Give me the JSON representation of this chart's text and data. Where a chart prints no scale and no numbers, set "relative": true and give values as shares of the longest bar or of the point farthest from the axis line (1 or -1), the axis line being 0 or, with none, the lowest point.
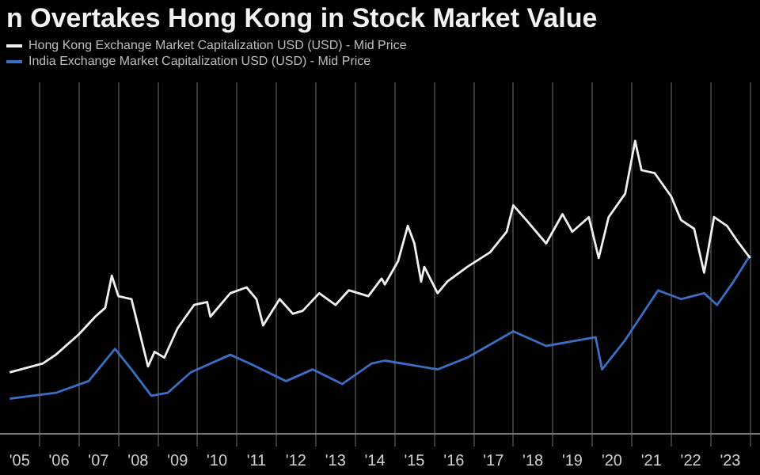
{
  "chart_data": {
    "type": "line",
    "title": "n Overtakes Hong Kong in Stock Market Value",
    "relative": true,
    "legend": "top left",
    "grid": "x",
    "marker": "none",
    "line_style": "solid",
    "xlim": [
      "2005-01",
      "2024-04"
    ],
    "xticks": [
      {
        "value": "2005-07-01",
        "label": "'05"
      },
      {
        "value": "2006-01-01",
        "label": null
      },
      {
        "value": "2006-07-01",
        "label": "'06"
      },
      {
        "value": "2007-01-01",
        "label": null
      },
      {
        "value": "2007-07-01",
        "label": "'07"
      },
      {
        "value": "2008-01-01",
        "label": null
      },
      {
        "value": "2008-07-01",
        "label": "'08"
      },
      {
        "value": "2009-01-01",
        "label": null
      },
      {
        "value": "2009-07-01",
        "label": "'09"
      },
      {
        "value": "2010-01-01",
        "label": null
      },
      {
        "value": "2010-07-01",
        "label": "'10"
      },
      {
        "value": "2011-01-01",
        "label": null
      },
      {
        "value": "2011-07-01",
        "label": "'11"
      },
      {
        "value": "2012-01-01",
        "label": null
      },
      {
        "value": "2012-07-01",
        "label": "'12"
      },
      {
        "value": "2013-01-01",
        "label": null
      },
      {
        "value": "2013-07-01",
        "label": "'13"
      },
      {
        "value": "2014-01-01",
        "label": null
      },
      {
        "value": "2014-07-01",
        "label": "'14"
      },
      {
        "value": "2015-01-01",
        "label": null
      },
      {
        "value": "2015-07-01",
        "label": "'15"
      },
      {
        "value": "2016-01-01",
        "label": null
      },
      {
        "value": "2016-07-01",
        "label": "'16"
      },
      {
        "value": "2017-01-01",
        "label": null
      },
      {
        "value": "2017-07-01",
        "label": "'17"
      },
      {
        "value": "2018-01-01",
        "label": null
      },
      {
        "value": "2018-07-01",
        "label": "'18"
      },
      {
        "value": "2019-01-01",
        "label": null
      },
      {
        "value": "2019-07-01",
        "label": "'19"
      },
      {
        "value": "2020-01-01",
        "label": null
      },
      {
        "value": "2020-07-01",
        "label": "'20"
      },
      {
        "value": "2021-01-01",
        "label": null
      },
      {
        "value": "2021-07-01",
        "label": "'21"
      },
      {
        "value": "2022-01-01",
        "label": null
      },
      {
        "value": "2022-07-01",
        "label": "'22"
      },
      {
        "value": "2023-01-01",
        "label": null
      },
      {
        "value": "2023-07-01",
        "label": "'23"
      },
      {
        "value": "2024-01-01",
        "label": null
      }
    ],
    "series": [
      {
        "name": "Hong Kong Exchange Market Capitalization USD (USD) - Mid Price",
        "color": "#f0f0f0",
        "x": [
          "2005-04",
          "2006-02",
          "2006-06",
          "2007-01",
          "2007-06",
          "2007-09",
          "2007-11",
          "2008-01",
          "2008-05",
          "2008-10",
          "2008-12",
          "2009-03",
          "2009-07",
          "2009-12",
          "2010-04",
          "2010-05",
          "2010-11",
          "2011-04",
          "2011-07",
          "2011-09",
          "2012-02",
          "2012-06",
          "2012-09",
          "2013-02",
          "2013-07",
          "2013-11",
          "2014-05",
          "2014-09",
          "2014-10",
          "2015-02",
          "2015-05",
          "2015-07",
          "2015-09",
          "2015-10",
          "2016-02",
          "2016-05",
          "2016-11",
          "2017-06",
          "2017-11",
          "2018-01",
          "2018-05",
          "2018-11",
          "2019-04",
          "2019-07",
          "2019-12",
          "2020-03",
          "2020-06",
          "2020-11",
          "2021-02",
          "2021-04",
          "2021-08",
          "2022-01",
          "2022-04",
          "2022-08",
          "2022-11",
          "2023-02",
          "2023-06",
          "2023-09",
          "2024-01"
        ],
        "values": [
          0.21,
          0.24,
          0.27,
          0.34,
          0.4,
          0.43,
          0.54,
          0.47,
          0.46,
          0.23,
          0.28,
          0.26,
          0.36,
          0.44,
          0.45,
          0.4,
          0.48,
          0.5,
          0.46,
          0.37,
          0.46,
          0.41,
          0.42,
          0.48,
          0.44,
          0.49,
          0.47,
          0.53,
          0.51,
          0.59,
          0.71,
          0.65,
          0.52,
          0.57,
          0.48,
          0.52,
          0.57,
          0.62,
          0.69,
          0.78,
          0.73,
          0.65,
          0.75,
          0.69,
          0.74,
          0.6,
          0.74,
          0.82,
          1.0,
          0.9,
          0.89,
          0.81,
          0.73,
          0.7,
          0.55,
          0.74,
          0.71,
          0.66,
          0.6
        ]
      },
      {
        "name": "India Exchange Market Capitalization USD (USD) - Mid Price",
        "color": "#3a6fc4",
        "x": [
          "2005-04",
          "2006-06",
          "2007-04",
          "2007-12",
          "2008-05",
          "2008-11",
          "2009-04",
          "2009-11",
          "2010-11",
          "2011-05",
          "2012-04",
          "2012-12",
          "2013-09",
          "2014-06",
          "2014-10",
          "2016-02",
          "2016-11",
          "2018-01",
          "2018-11",
          "2019-09",
          "2020-02",
          "2020-04",
          "2020-11",
          "2021-09",
          "2022-04",
          "2022-11",
          "2023-03",
          "2023-08",
          "2024-01"
        ],
        "values": [
          0.12,
          0.14,
          0.18,
          0.29,
          0.22,
          0.13,
          0.14,
          0.21,
          0.27,
          0.24,
          0.18,
          0.22,
          0.17,
          0.24,
          0.25,
          0.22,
          0.26,
          0.35,
          0.3,
          0.32,
          0.33,
          0.22,
          0.32,
          0.49,
          0.46,
          0.48,
          0.44,
          0.52,
          0.61
        ]
      }
    ]
  }
}
